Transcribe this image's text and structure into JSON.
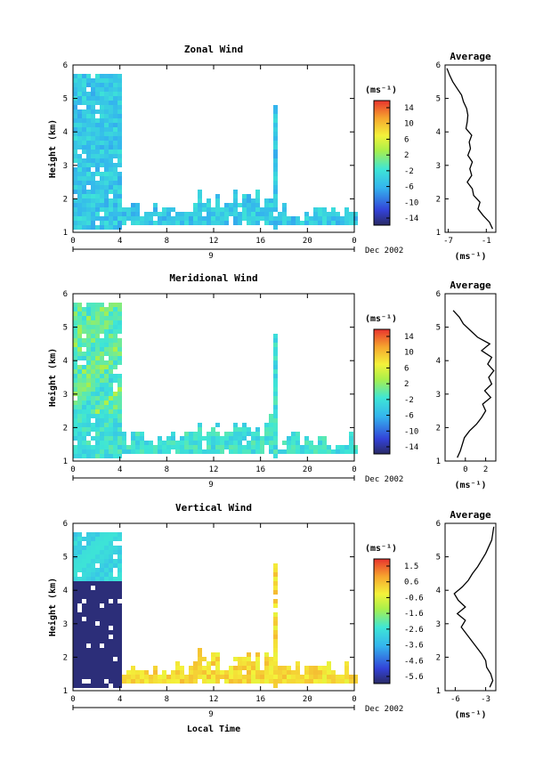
{
  "figure": {
    "bottom_label": "Local Time"
  },
  "panels": [
    {
      "title": "Zonal Wind",
      "ylabel": "Height (km)",
      "date_label": "Dec 2002",
      "sub_label": "9",
      "cbar_unit": "(ms⁻¹)",
      "cbar_ticks": [
        "14",
        "10",
        "6",
        "2",
        "-2",
        "-6",
        "-10",
        "-14"
      ],
      "avg_title": "Average",
      "avg_unit": "(ms⁻¹)",
      "avg_xticks": [
        "-7",
        "-1"
      ]
    },
    {
      "title": "Meridional Wind",
      "ylabel": "Height (km)",
      "date_label": "Dec 2002",
      "sub_label": "9",
      "cbar_unit": "(ms⁻¹)",
      "cbar_ticks": [
        "14",
        "10",
        "6",
        "2",
        "-2",
        "-6",
        "-10",
        "-14"
      ],
      "avg_title": "Average",
      "avg_unit": "(ms⁻¹)",
      "avg_xticks": [
        "0",
        "2"
      ]
    },
    {
      "title": "Vertical Wind",
      "ylabel": "Height (km)",
      "date_label": "Dec 2002",
      "sub_label": "9",
      "cbar_unit": "(ms⁻¹)",
      "cbar_ticks": [
        "1.5",
        "0.6",
        "-0.6",
        "-1.6",
        "-2.6",
        "-3.6",
        "-4.6",
        "-5.6"
      ],
      "avg_title": "Average",
      "avg_unit": "(ms⁻¹)",
      "avg_xticks": [
        "-6",
        "-3"
      ]
    }
  ],
  "chart_data": [
    {
      "type": "heatmap",
      "title": "Zonal Wind",
      "xlabel": "Local Time",
      "ylabel": "Height (km)",
      "x_ticks": [
        "0",
        "4",
        "8",
        "12",
        "16",
        "20",
        "0"
      ],
      "y_ticks": [
        "1",
        "2",
        "3",
        "4",
        "5",
        "6"
      ],
      "xlim_hours": [
        0,
        24
      ],
      "ylim_km": [
        1,
        6
      ],
      "colorbar": {
        "unit": "(ms⁻¹)",
        "range": [
          -16,
          16
        ]
      },
      "profile": {
        "title": "Average",
        "xlim": [
          -7.5,
          0.5
        ],
        "xticks": [
          -7,
          -1
        ],
        "height_km": [
          1.1,
          1.3,
          1.5,
          1.7,
          1.9,
          2.1,
          2.3,
          2.5,
          2.7,
          2.9,
          3.1,
          3.3,
          3.5,
          3.7,
          3.9,
          4.1,
          4.3,
          4.5,
          4.7,
          4.9,
          5.1,
          5.3,
          5.5,
          5.7,
          5.9
        ],
        "values": [
          0.0,
          -0.5,
          -1.5,
          -2.3,
          -2.0,
          -3.0,
          -3.2,
          -4.0,
          -3.3,
          -3.6,
          -3.2,
          -3.9,
          -3.5,
          -3.7,
          -3.3,
          -4.2,
          -4.0,
          -3.9,
          -4.1,
          -4.6,
          -4.9,
          -5.6,
          -6.3,
          -6.8,
          -7.2
        ]
      }
    },
    {
      "type": "heatmap",
      "title": "Meridional Wind",
      "xlabel": "Local Time",
      "ylabel": "Height (km)",
      "x_ticks": [
        "0",
        "4",
        "8",
        "12",
        "16",
        "20",
        "0"
      ],
      "y_ticks": [
        "1",
        "2",
        "3",
        "4",
        "5",
        "6"
      ],
      "xlim_hours": [
        0,
        24
      ],
      "ylim_km": [
        1,
        6
      ],
      "colorbar": {
        "unit": "(ms⁻¹)",
        "range": [
          -16,
          16
        ]
      },
      "profile": {
        "title": "Average",
        "xlim": [
          -2,
          3
        ],
        "xticks": [
          0,
          2
        ],
        "height_km": [
          1.1,
          1.3,
          1.5,
          1.7,
          1.9,
          2.1,
          2.3,
          2.5,
          2.7,
          2.9,
          3.1,
          3.3,
          3.5,
          3.7,
          3.9,
          4.1,
          4.3,
          4.5,
          4.7,
          4.9,
          5.1,
          5.3,
          5.5
        ],
        "values": [
          -0.8,
          -0.5,
          -0.3,
          -0.1,
          0.4,
          1.1,
          1.6,
          2.0,
          1.7,
          2.5,
          1.9,
          2.6,
          2.3,
          2.8,
          2.2,
          2.6,
          1.6,
          2.4,
          1.2,
          0.5,
          -0.2,
          -0.6,
          -1.2
        ]
      }
    },
    {
      "type": "heatmap",
      "title": "Vertical Wind",
      "xlabel": "Local Time",
      "ylabel": "Height (km)",
      "x_ticks": [
        "0",
        "4",
        "8",
        "12",
        "16",
        "20",
        "0"
      ],
      "y_ticks": [
        "1",
        "2",
        "3",
        "4",
        "5",
        "6"
      ],
      "xlim_hours": [
        0,
        24
      ],
      "ylim_km": [
        1,
        6
      ],
      "colorbar": {
        "unit": "(ms⁻¹)",
        "range": [
          -6,
          2
        ]
      },
      "profile": {
        "title": "Average",
        "xlim": [
          -7,
          -2
        ],
        "xticks": [
          -6,
          -3
        ],
        "height_km": [
          1.1,
          1.3,
          1.5,
          1.7,
          1.9,
          2.1,
          2.3,
          2.5,
          2.7,
          2.9,
          3.1,
          3.3,
          3.5,
          3.7,
          3.9,
          4.1,
          4.3,
          4.5,
          4.7,
          4.9,
          5.1,
          5.3,
          5.5,
          5.7,
          5.9
        ],
        "values": [
          -2.6,
          -2.3,
          -2.5,
          -2.9,
          -3.0,
          -3.4,
          -3.9,
          -4.4,
          -4.9,
          -5.4,
          -5.0,
          -5.8,
          -5.0,
          -5.7,
          -6.1,
          -5.3,
          -4.7,
          -4.3,
          -3.8,
          -3.4,
          -3.0,
          -2.7,
          -2.4,
          -2.3,
          -2.2
        ]
      }
    }
  ]
}
